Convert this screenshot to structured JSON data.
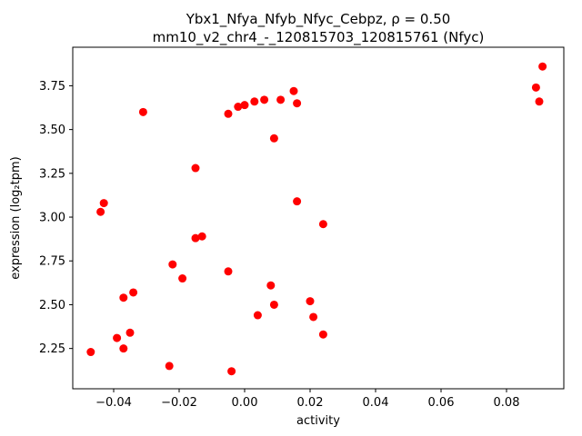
{
  "figure": {
    "title_line1": "Ybx1_Nfya_Nfyb_Nfyc_Cebpz, ρ = 0.50",
    "title_line2": "mm10_v2_chr4_-_120815703_120815761 (Nfyc)"
  },
  "chart_data": {
    "type": "scatter",
    "title": "Ybx1_Nfya_Nfyb_Nfyc_Cebpz, ρ = 0.50",
    "subtitle": "mm10_v2_chr4_-_120815703_120815761 (Nfyc)",
    "xlabel": "activity",
    "ylabel": "expression (log₂tpm)",
    "xlim": [
      -0.0525,
      0.0975
    ],
    "ylim": [
      2.02,
      3.97
    ],
    "x_ticks": [
      -0.04,
      -0.02,
      0.0,
      0.02,
      0.04,
      0.06,
      0.08
    ],
    "y_ticks": [
      2.25,
      2.5,
      2.75,
      3.0,
      3.25,
      3.5,
      3.75
    ],
    "grid": false,
    "legend": "none",
    "marker_color": "#ff0000",
    "points": [
      [
        -0.047,
        2.23
      ],
      [
        -0.044,
        3.03
      ],
      [
        -0.043,
        3.08
      ],
      [
        -0.039,
        2.31
      ],
      [
        -0.037,
        2.25
      ],
      [
        -0.037,
        2.54
      ],
      [
        -0.035,
        2.34
      ],
      [
        -0.034,
        2.57
      ],
      [
        -0.031,
        3.6
      ],
      [
        -0.023,
        2.15
      ],
      [
        -0.022,
        2.73
      ],
      [
        -0.019,
        2.65
      ],
      [
        -0.015,
        3.28
      ],
      [
        -0.015,
        2.88
      ],
      [
        -0.013,
        2.89
      ],
      [
        -0.005,
        2.69
      ],
      [
        -0.005,
        3.59
      ],
      [
        -0.004,
        2.12
      ],
      [
        -0.002,
        3.63
      ],
      [
        0.0,
        3.64
      ],
      [
        0.003,
        3.66
      ],
      [
        0.004,
        2.44
      ],
      [
        0.006,
        3.67
      ],
      [
        0.008,
        2.61
      ],
      [
        0.009,
        2.5
      ],
      [
        0.009,
        3.45
      ],
      [
        0.011,
        3.67
      ],
      [
        0.015,
        3.72
      ],
      [
        0.016,
        3.65
      ],
      [
        0.016,
        3.09
      ],
      [
        0.02,
        2.52
      ],
      [
        0.021,
        2.43
      ],
      [
        0.024,
        2.96
      ],
      [
        0.024,
        2.33
      ],
      [
        0.089,
        3.74
      ],
      [
        0.09,
        3.66
      ],
      [
        0.091,
        3.86
      ]
    ]
  }
}
